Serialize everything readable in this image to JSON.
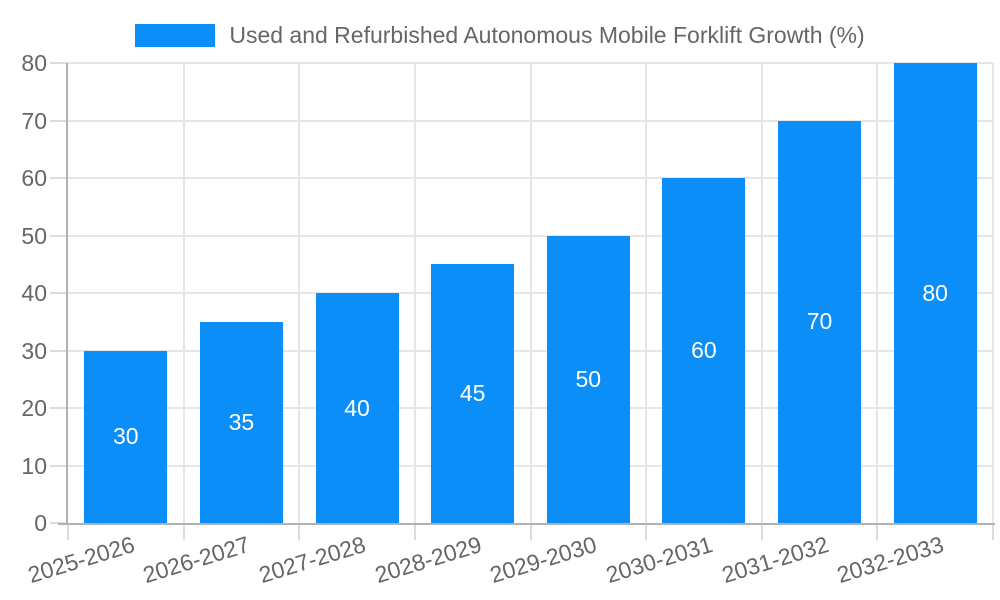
{
  "chart_data": {
    "type": "bar",
    "legend": "Used and Refurbished Autonomous Mobile Forklift Growth (%)",
    "legend_position": "top",
    "categories": [
      "2025-2026",
      "2026-2027",
      "2027-2028",
      "2028-2029",
      "2029-2030",
      "2030-2031",
      "2031-2032",
      "2032-2033"
    ],
    "values": [
      30,
      35,
      40,
      45,
      50,
      60,
      70,
      80
    ],
    "bar_value_labels": [
      "30",
      "35",
      "40",
      "45",
      "50",
      "60",
      "70",
      "80"
    ],
    "yticks": [
      0,
      10,
      20,
      30,
      40,
      50,
      60,
      70,
      80
    ],
    "ylim": [
      0,
      80
    ],
    "xlabel": "",
    "ylabel": "",
    "grid": true,
    "x_tick_label_rotation_deg": -17,
    "colors": {
      "bar": "#0c8ef8",
      "grid": "#e6e6e6",
      "axis": "#b1b1b1",
      "tick": "#dcdcdd",
      "label": "#666666",
      "bar_label": "#ffffff",
      "background": "#ffffff"
    }
  }
}
